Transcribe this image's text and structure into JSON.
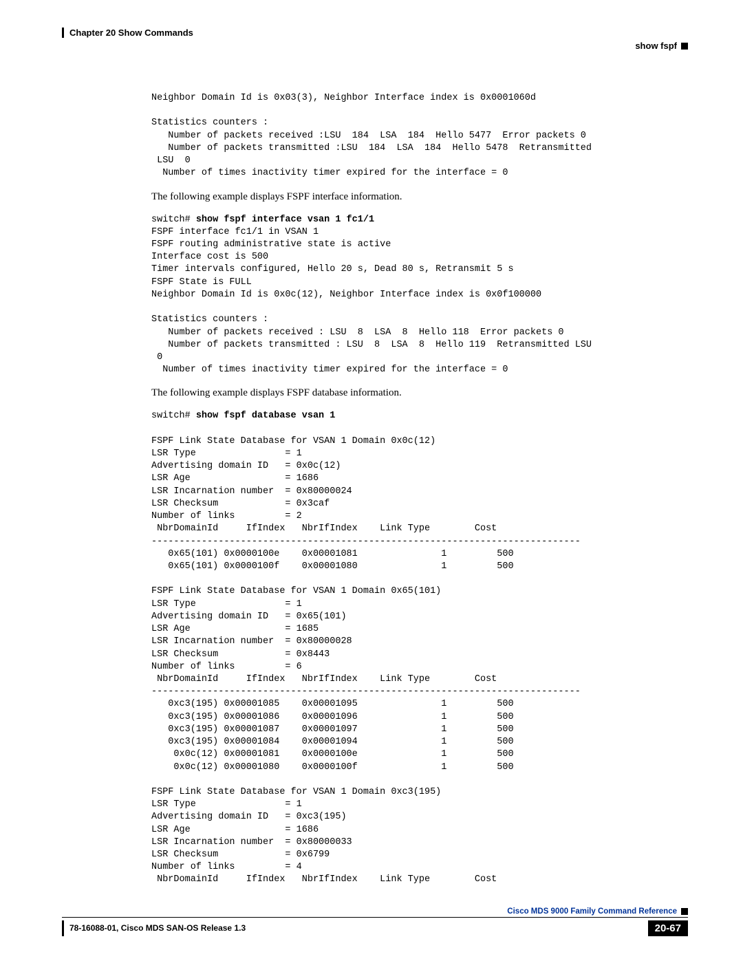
{
  "header": {
    "chapter": "Chapter 20    Show Commands",
    "section": "show fspf"
  },
  "block1": "Neighbor Domain Id is 0x03(3), Neighbor Interface index is 0x0001060d\n\nStatistics counters :\n   Number of packets received :LSU  184  LSA  184  Hello 5477  Error packets 0\n   Number of packets transmitted :LSU  184  LSA  184  Hello 5478  Retransmitted\n LSU  0\n  Number of times inactivity timer expired for the interface = 0",
  "para1": "The following example displays FSPF interface information.",
  "cmd2_prompt": "switch# ",
  "cmd2_bold": "show fspf interface vsan 1 fc1/1",
  "block2": "FSPF interface fc1/1 in VSAN 1\nFSPF routing administrative state is active\nInterface cost is 500\nTimer intervals configured, Hello 20 s, Dead 80 s, Retransmit 5 s\nFSPF State is FULL\nNeighbor Domain Id is 0x0c(12), Neighbor Interface index is 0x0f100000\n\nStatistics counters :\n   Number of packets received : LSU  8  LSA  8  Hello 118  Error packets 0\n   Number of packets transmitted : LSU  8  LSA  8  Hello 119  Retransmitted LSU\n 0\n  Number of times inactivity timer expired for the interface = 0",
  "para2": "The following example displays FSPF database information.",
  "cmd3_prompt": "switch# ",
  "cmd3_bold": "show fspf database vsan 1",
  "block3": "\nFSPF Link State Database for VSAN 1 Domain 0x0c(12)\nLSR Type                = 1\nAdvertising domain ID   = 0x0c(12)\nLSR Age                 = 1686\nLSR Incarnation number  = 0x80000024\nLSR Checksum            = 0x3caf\nNumber of links         = 2\n NbrDomainId     IfIndex   NbrIfIndex    Link Type        Cost\n-----------------------------------------------------------------------------\n   0x65(101) 0x0000100e    0x00001081               1         500\n   0x65(101) 0x0000100f    0x00001080               1         500\n\nFSPF Link State Database for VSAN 1 Domain 0x65(101)\nLSR Type                = 1\nAdvertising domain ID   = 0x65(101)\nLSR Age                 = 1685\nLSR Incarnation number  = 0x80000028\nLSR Checksum            = 0x8443\nNumber of links         = 6\n NbrDomainId     IfIndex   NbrIfIndex    Link Type        Cost\n-----------------------------------------------------------------------------\n   0xc3(195) 0x00001085    0x00001095               1         500\n   0xc3(195) 0x00001086    0x00001096               1         500\n   0xc3(195) 0x00001087    0x00001097               1         500\n   0xc3(195) 0x00001084    0x00001094               1         500\n    0x0c(12) 0x00001081    0x0000100e               1         500\n    0x0c(12) 0x00001080    0x0000100f               1         500\n\nFSPF Link State Database for VSAN 1 Domain 0xc3(195)\nLSR Type                = 1\nAdvertising domain ID   = 0xc3(195)\nLSR Age                 = 1686\nLSR Incarnation number  = 0x80000033\nLSR Checksum            = 0x6799\nNumber of links         = 4\n NbrDomainId     IfIndex   NbrIfIndex    Link Type        Cost",
  "footer": {
    "cisco": "Cisco MDS 9000 Family Command Reference",
    "pub": "78-16088-01, Cisco MDS SAN-OS Release 1.3",
    "page": "20-67"
  }
}
